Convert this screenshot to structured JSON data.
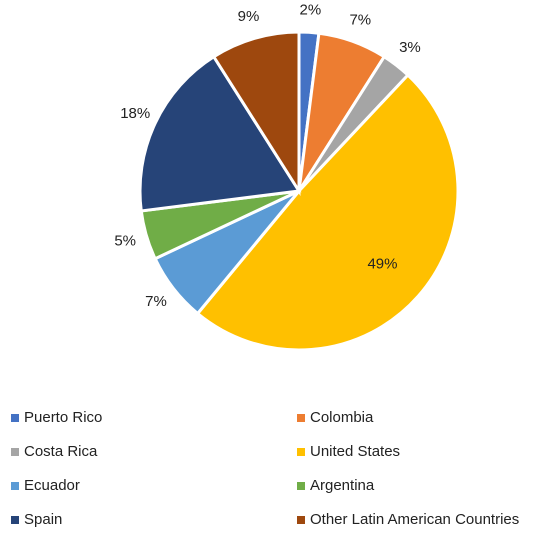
{
  "chart_data": {
    "type": "pie",
    "categories": [
      "Puerto Rico",
      "Colombia",
      "Costa Rica",
      "United States",
      "Ecuador",
      "Argentina",
      "Spain",
      "Other Latin American Countries"
    ],
    "values": [
      2,
      7,
      3,
      49,
      7,
      5,
      18,
      9
    ],
    "value_labels": [
      "2%",
      "7%",
      "3%",
      "49%",
      "7%",
      "5%",
      "18%",
      "9%"
    ],
    "colors": [
      "#4472c4",
      "#ed7d31",
      "#a5a5a5",
      "#ffc000",
      "#5b9bd5",
      "#70ad47",
      "#264478",
      "#9e480e"
    ],
    "legend": "bottom"
  }
}
